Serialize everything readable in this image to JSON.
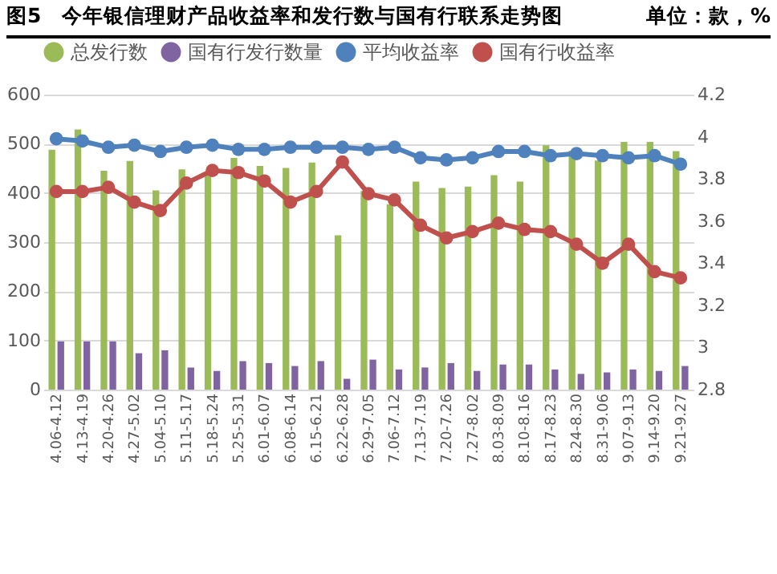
{
  "chart_data": {
    "type": "bar",
    "title": "图5　今年银信理财产品收益率和发行数与国有行联系走势图",
    "annotations": [
      "单位：款，%"
    ],
    "categories": [
      "4.06-4.12",
      "4.13-4.19",
      "4.20-4.26",
      "4.27-5.02",
      "5.04-5.10",
      "5.11-5.17",
      "5.18-5.24",
      "5.25-5.31",
      "6.01-6.07",
      "6.08-6.14",
      "6.15-6.21",
      "6.22-6.28",
      "6.29-7.05",
      "7.06-7.12",
      "7.13-7.19",
      "7.20-7.26",
      "7.27-8.02",
      "8.03-8.09",
      "8.10-8.16",
      "8.17-8.23",
      "8.24-8.30",
      "8.31-9.06",
      "9.07-9.13",
      "9.14-9.20",
      "9.21-9.27"
    ],
    "series": [
      {
        "name": "总发行数",
        "color": "#9bbb59",
        "values": [
          488,
          529,
          445,
          465,
          405,
          448,
          442,
          471,
          455,
          451,
          462,
          314,
          404,
          377,
          423,
          410,
          413,
          436,
          423,
          497,
          486,
          466,
          504,
          504,
          485
        ]
      },
      {
        "name": "国有行发行数量",
        "color": "#8064a2",
        "values": [
          98,
          98,
          98,
          74,
          80,
          45,
          38,
          58,
          54,
          48,
          58,
          22,
          61,
          41,
          45,
          54,
          38,
          51,
          51,
          41,
          32,
          35,
          41,
          38,
          48
        ]
      },
      {
        "name": "平均收益率",
        "type": "line",
        "axis": "y2",
        "color": "#4f81bd",
        "values": [
          3.99,
          3.98,
          3.95,
          3.96,
          3.93,
          3.95,
          3.96,
          3.94,
          3.94,
          3.95,
          3.95,
          3.95,
          3.94,
          3.95,
          3.9,
          3.89,
          3.9,
          3.93,
          3.93,
          3.91,
          3.92,
          3.91,
          3.9,
          3.91,
          3.87
        ]
      },
      {
        "name": "国有行收益率",
        "type": "line",
        "axis": "y2",
        "color": "#c0504d",
        "values": [
          3.74,
          3.74,
          3.76,
          3.69,
          3.65,
          3.78,
          3.84,
          3.83,
          3.79,
          3.69,
          3.74,
          3.88,
          3.73,
          3.7,
          3.58,
          3.52,
          3.55,
          3.59,
          3.56,
          3.55,
          3.49,
          3.4,
          3.49,
          3.36,
          3.33
        ]
      }
    ],
    "ylim": [
      0,
      600
    ],
    "yticks": [
      0,
      100,
      200,
      300,
      400,
      500,
      600
    ],
    "y2lim": [
      2.8,
      4.2
    ],
    "y2ticks": [
      2.8,
      3,
      3.2,
      3.4,
      3.6,
      3.8,
      4,
      4.2
    ],
    "grid": "y",
    "legend": "top",
    "marker": "circle",
    "line_style": "solid"
  }
}
